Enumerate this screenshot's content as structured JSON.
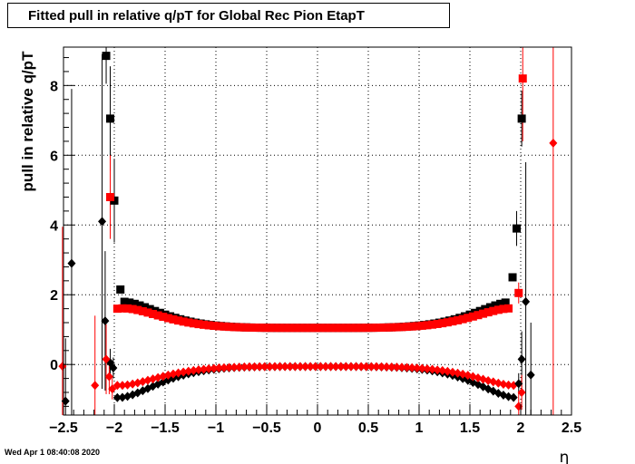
{
  "chart_data": {
    "type": "scatter",
    "title": "Fitted pull in relative q/pT for Global Rec Pion EtapT",
    "xlabel": "η",
    "ylabel": "pull in relative q/pT",
    "xlim": [
      -2.5,
      2.5
    ],
    "ylim": [
      -1.45,
      9.1
    ],
    "x_ticks": [
      "−2.5",
      "−2",
      "−1.5",
      "−1",
      "−0.5",
      "0",
      "0.5",
      "1",
      "1.5",
      "2",
      "2.5"
    ],
    "x_tick_values": [
      -2.5,
      -2,
      -1.5,
      -1,
      -0.5,
      0,
      0.5,
      1,
      1.5,
      2,
      2.5
    ],
    "y_ticks": [
      "0",
      "2",
      "4",
      "6",
      "8"
    ],
    "y_tick_values": [
      0,
      2,
      4,
      6,
      8
    ],
    "grid": true,
    "series": [
      {
        "color": "#000000",
        "marker": "square",
        "points": [
          {
            "x": -2.08,
            "y": 8.85,
            "e": 0.8
          },
          {
            "x": -2.04,
            "y": 7.05,
            "e": 1.5
          },
          {
            "x": -2.0,
            "y": 4.7,
            "e": 1.2
          },
          {
            "x": -1.94,
            "y": 2.15,
            "e": 0.1
          },
          {
            "x": 1.92,
            "y": 2.5,
            "e": 0.1
          },
          {
            "x": 1.96,
            "y": 3.9,
            "e": 0.5
          },
          {
            "x": 2.01,
            "y": 7.05,
            "e": 0.8
          }
        ]
      },
      {
        "color": "#ff0000",
        "marker": "square",
        "points": [
          {
            "x": -2.04,
            "y": 4.8,
            "e": 1.2
          },
          {
            "x": 1.98,
            "y": 2.05,
            "e": 0.3
          },
          {
            "x": 2.02,
            "y": 8.2,
            "e": 1.8
          }
        ]
      },
      {
        "color": "#000000",
        "marker": "diamond",
        "points": [
          {
            "x": -2.48,
            "y": -1.05,
            "e": 1.8
          },
          {
            "x": -2.42,
            "y": 2.9,
            "e": 5.0
          },
          {
            "x": -2.12,
            "y": 4.1,
            "e": 4.8
          },
          {
            "x": -2.09,
            "y": 1.25,
            "e": 2.0
          },
          {
            "x": -2.04,
            "y": 0.05,
            "e": 0.4
          },
          {
            "x": -2.01,
            "y": -0.1,
            "e": 0.3
          },
          {
            "x": 1.98,
            "y": -0.55,
            "e": 0.3
          },
          {
            "x": 2.01,
            "y": 0.15,
            "e": 0.8
          },
          {
            "x": 2.05,
            "y": 1.8,
            "e": 4.0
          },
          {
            "x": 2.1,
            "y": -0.3,
            "e": 1.5
          }
        ]
      },
      {
        "color": "#ff0000",
        "marker": "diamond",
        "points": [
          {
            "x": -2.51,
            "y": -0.05,
            "e": 4.0
          },
          {
            "x": -2.19,
            "y": -0.6,
            "e": 2.0
          },
          {
            "x": -2.08,
            "y": 0.15,
            "e": 1.0
          },
          {
            "x": -2.05,
            "y": -0.35,
            "e": 0.5
          },
          {
            "x": -2.02,
            "y": -0.7,
            "e": 0.3
          },
          {
            "x": 1.98,
            "y": -1.2,
            "e": 0.4
          },
          {
            "x": 2.01,
            "y": -0.8,
            "e": 0.5
          },
          {
            "x": 2.32,
            "y": 6.35,
            "e": 9.0
          }
        ]
      }
    ],
    "bands": [
      {
        "color": "#000000",
        "marker": "square",
        "from": -1.9,
        "to": 1.88,
        "step": 0.05,
        "center": 1.05,
        "a": 0.095,
        "edge_value": 1.8
      },
      {
        "color": "#ff0000",
        "marker": "square",
        "from": -1.97,
        "to": 1.9,
        "step": 0.05,
        "center": 1.05,
        "a": 0.08,
        "edge_value": 1.6
      },
      {
        "color": "#000000",
        "marker": "diamond",
        "from": -1.97,
        "to": 1.95,
        "step": 0.05,
        "center": -0.06,
        "a": -0.1,
        "edge_value": -0.95
      },
      {
        "color": "#ff0000",
        "marker": "diamond",
        "from": -1.97,
        "to": 1.93,
        "step": 0.05,
        "center": -0.06,
        "a": -0.065,
        "edge_value": -0.6
      }
    ]
  },
  "footer": {
    "datestamp": "Wed Apr  1 08:40:08 2020"
  }
}
